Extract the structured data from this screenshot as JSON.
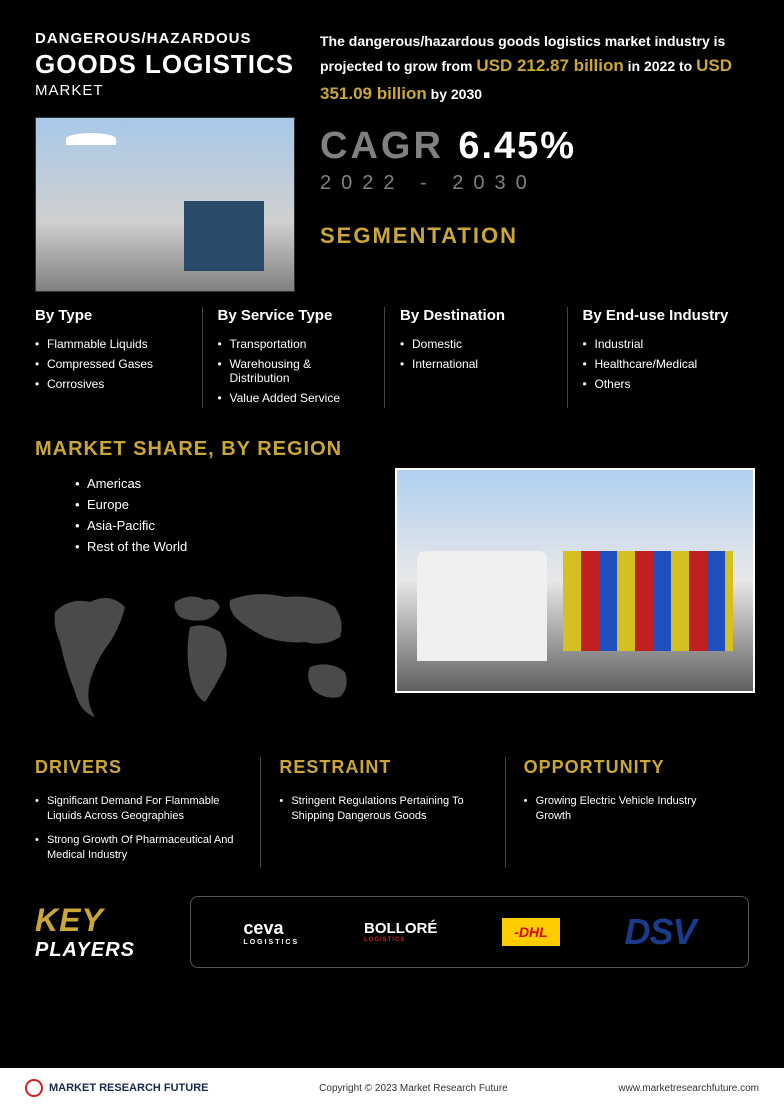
{
  "header": {
    "pre": "DANGEROUS/HAZARDOUS",
    "main": "GOODS LOGISTICS",
    "sub": "MARKET",
    "intro_p1": "The dangerous/hazardous goods logistics market industry is projected to grow from ",
    "val1": "USD 212.87 billion",
    "intro_p2": " in 2022 to ",
    "val2": "USD 351.09 billion",
    "intro_p3": " by 2030",
    "cagr_label": "CAGR",
    "cagr_value": "6.45%",
    "cagr_years": "2022 - 2030"
  },
  "seg_title": "SEGMENTATION",
  "segments": [
    {
      "head": "By Type",
      "items": [
        "Flammable Liquids",
        "Compressed Gases",
        "Corrosives"
      ]
    },
    {
      "head": "By Service Type",
      "items": [
        "Transportation",
        "Warehousing & Distribution",
        "Value Added Service"
      ]
    },
    {
      "head": "By Destination",
      "items": [
        "Domestic",
        "International"
      ]
    },
    {
      "head": "By End-use Industry",
      "items": [
        "Industrial",
        "Healthcare/Medical",
        "Others"
      ]
    }
  ],
  "region": {
    "title": "MARKET SHARE, BY REGION",
    "items": [
      "Americas",
      "Europe",
      "Asia-Pacific",
      "Rest of the World"
    ]
  },
  "dro": [
    {
      "head": "DRIVERS",
      "items": [
        "Significant Demand For Flammable Liquids Across Geographies",
        "Strong Growth Of Pharmaceutical And Medical Industry"
      ]
    },
    {
      "head": "RESTRAINT",
      "items": [
        "Stringent Regulations Pertaining To Shipping Dangerous Goods"
      ]
    },
    {
      "head": "OPPORTUNITY",
      "items": [
        "Growing Electric Vehicle Industry Growth"
      ]
    }
  ],
  "kp": {
    "key": "KEY",
    "players": "PLAYERS",
    "logos": {
      "ceva": "ceva",
      "ceva_sub": "LOGISTICS",
      "bollore": "BOLLORÉ",
      "bollore_sub": "LOGISTICS",
      "dhl": "-DHL",
      "dsv": "DSV"
    }
  },
  "footer": {
    "brand": "MARKET RESEARCH FUTURE",
    "copy": "Copyright © 2023 Market Research Future",
    "url": "www.marketresearchfuture.com"
  },
  "colors": {
    "bg": "#000000",
    "accent": "#c9a637",
    "text": "#ffffff",
    "muted": "#808080",
    "dhl_bg": "#ffcc00",
    "dhl_fg": "#d40511",
    "dsv": "#1a3a8a"
  }
}
